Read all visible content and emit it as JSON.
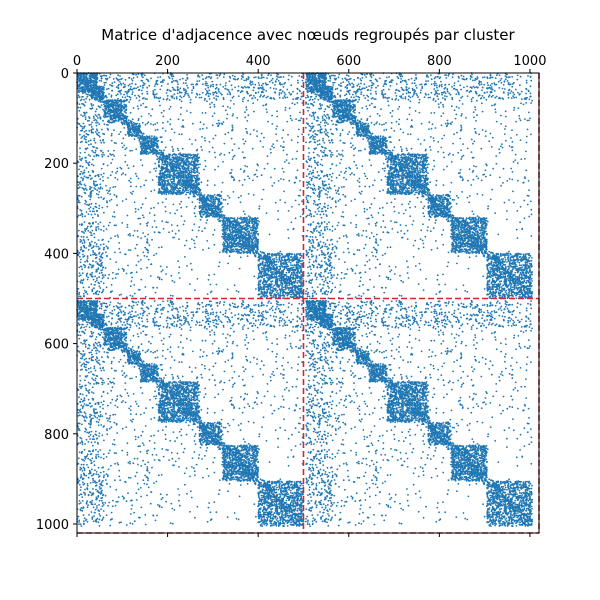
{
  "chart_data": {
    "type": "heatmap",
    "subtype": "spy",
    "title": "Matrice d'adjacence avec nœuds regroupés par cluster",
    "xlabel": "",
    "ylabel": "",
    "x_axis_position": "top",
    "xlim": [
      0,
      1020
    ],
    "ylim": [
      1020,
      0
    ],
    "x_ticks": [
      "0",
      "200",
      "400",
      "600",
      "800",
      "1000"
    ],
    "y_ticks": [
      "0",
      "200",
      "400",
      "600",
      "800",
      "1000"
    ],
    "grid": false,
    "legend": "none",
    "marker_color": "#1f77b4",
    "divider_color": "#d62728",
    "divider_style": "dashed",
    "partition_lines": [
      500,
      1020
    ],
    "n_nodes": 1020,
    "clusters": [
      {
        "start": 0,
        "end": 500
      },
      {
        "start": 500,
        "end": 1020
      }
    ],
    "dense_diagonal_blocks": [
      {
        "start": 0,
        "end": 45
      },
      {
        "start": 30,
        "end": 60
      },
      {
        "start": 60,
        "end": 110
      },
      {
        "start": 110,
        "end": 140
      },
      {
        "start": 140,
        "end": 180
      },
      {
        "start": 180,
        "end": 270
      },
      {
        "start": 270,
        "end": 320
      },
      {
        "start": 320,
        "end": 400
      },
      {
        "start": 400,
        "end": 500
      }
    ]
  }
}
